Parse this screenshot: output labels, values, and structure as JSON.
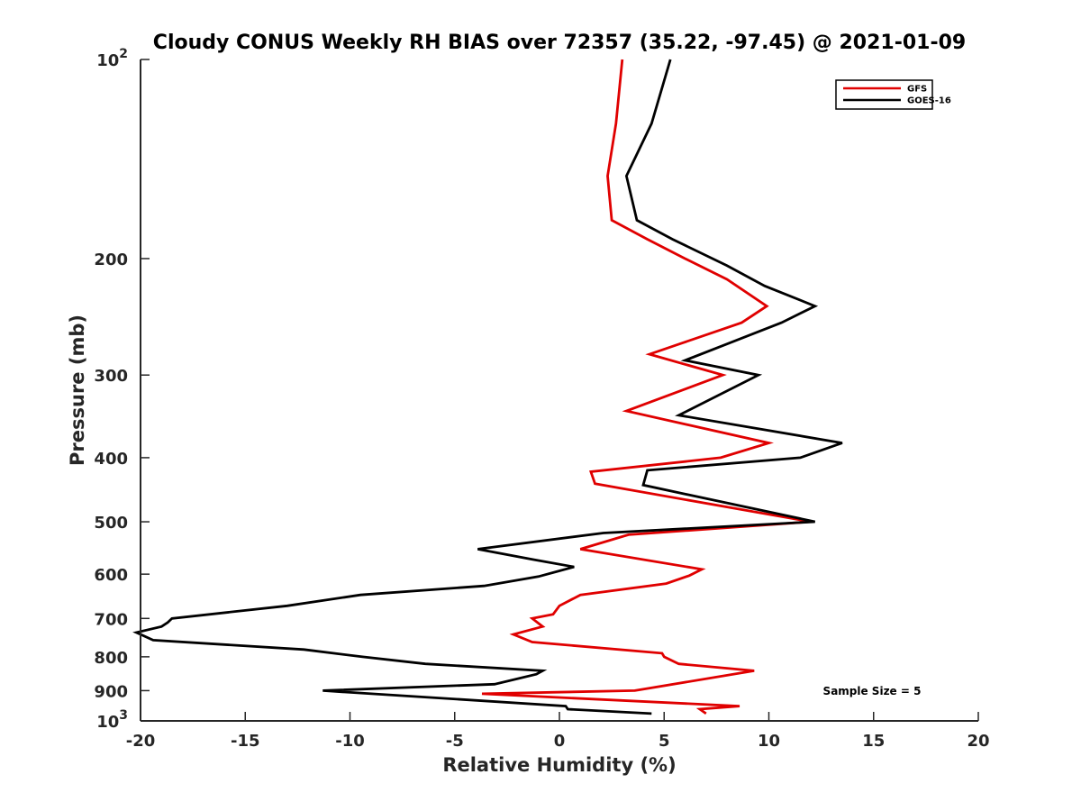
{
  "chart_data": {
    "type": "line",
    "title": "Cloudy CONUS Weekly RH BIAS over 72357 (35.22, -97.45) @ 2021-01-09",
    "xlabel": "Relative Humidity (%)",
    "ylabel": "Pressure (mb)",
    "xlim": [
      -20,
      20
    ],
    "ylim": [
      100,
      1000
    ],
    "y_scale": "log",
    "y_reversed": true,
    "xticks": [
      -20,
      -15,
      -10,
      -5,
      0,
      5,
      10,
      15,
      20
    ],
    "yticks": [
      {
        "value": 100,
        "base": "10",
        "exp": "2"
      },
      {
        "value": 200,
        "label": "200"
      },
      {
        "value": 300,
        "label": "300"
      },
      {
        "value": 400,
        "label": "400"
      },
      {
        "value": 500,
        "label": "500"
      },
      {
        "value": 600,
        "label": "600"
      },
      {
        "value": 700,
        "label": "700"
      },
      {
        "value": 800,
        "label": "800"
      },
      {
        "value": 900,
        "label": "900"
      },
      {
        "value": 1000,
        "base": "10",
        "exp": "3"
      }
    ],
    "grid": false,
    "legend_position": "top-right",
    "annotation": "Sample Size = 5",
    "series": [
      {
        "name": "GFS",
        "color": "#e00000",
        "points": [
          [
            3.0,
            100
          ],
          [
            2.7,
            125
          ],
          [
            2.3,
            150
          ],
          [
            2.5,
            175
          ],
          [
            4.2,
            187
          ],
          [
            6.0,
            200
          ],
          [
            8.0,
            215
          ],
          [
            9.9,
            236
          ],
          [
            8.7,
            250
          ],
          [
            4.3,
            279
          ],
          [
            7.8,
            300
          ],
          [
            3.2,
            340
          ],
          [
            10.0,
            380
          ],
          [
            7.7,
            400
          ],
          [
            1.5,
            420
          ],
          [
            1.7,
            438
          ],
          [
            12.0,
            500
          ],
          [
            3.3,
            523
          ],
          [
            1.0,
            550
          ],
          [
            6.8,
            590
          ],
          [
            6.2,
            603
          ],
          [
            5.1,
            620
          ],
          [
            1.0,
            645
          ],
          [
            0.0,
            670
          ],
          [
            -0.3,
            690
          ],
          [
            -1.3,
            700
          ],
          [
            -0.8,
            720
          ],
          [
            -2.2,
            740
          ],
          [
            -1.3,
            760
          ],
          [
            4.9,
            790
          ],
          [
            5.0,
            800
          ],
          [
            5.7,
            820
          ],
          [
            9.3,
            840
          ],
          [
            3.6,
            900
          ],
          [
            -3.7,
            910
          ],
          [
            8.6,
            950
          ],
          [
            6.7,
            960
          ],
          [
            7.0,
            975
          ]
        ]
      },
      {
        "name": "GOES-16",
        "color": "#000000",
        "points": [
          [
            5.3,
            100
          ],
          [
            4.4,
            125
          ],
          [
            3.2,
            150
          ],
          [
            3.7,
            175
          ],
          [
            5.4,
            187
          ],
          [
            8.0,
            205
          ],
          [
            9.8,
            220
          ],
          [
            12.2,
            236
          ],
          [
            10.6,
            250
          ],
          [
            6.0,
            285
          ],
          [
            9.5,
            300
          ],
          [
            5.7,
            345
          ],
          [
            13.5,
            380
          ],
          [
            11.5,
            400
          ],
          [
            4.2,
            418
          ],
          [
            4.0,
            440
          ],
          [
            12.2,
            500
          ],
          [
            2.1,
            520
          ],
          [
            -3.9,
            550
          ],
          [
            -1.3,
            570
          ],
          [
            0.7,
            585
          ],
          [
            -1.0,
            605
          ],
          [
            -3.6,
            625
          ],
          [
            -9.5,
            645
          ],
          [
            -13.0,
            670
          ],
          [
            -18.5,
            700
          ],
          [
            -18.7,
            710
          ],
          [
            -19.0,
            720
          ],
          [
            -20.2,
            735
          ],
          [
            -19.4,
            755
          ],
          [
            -12.2,
            780
          ],
          [
            -9.4,
            800
          ],
          [
            -6.4,
            820
          ],
          [
            -0.8,
            840
          ],
          [
            -1.1,
            850
          ],
          [
            -3.1,
            880
          ],
          [
            -11.3,
            900
          ],
          [
            0.3,
            950
          ],
          [
            0.4,
            960
          ],
          [
            4.4,
            975
          ]
        ]
      }
    ]
  }
}
